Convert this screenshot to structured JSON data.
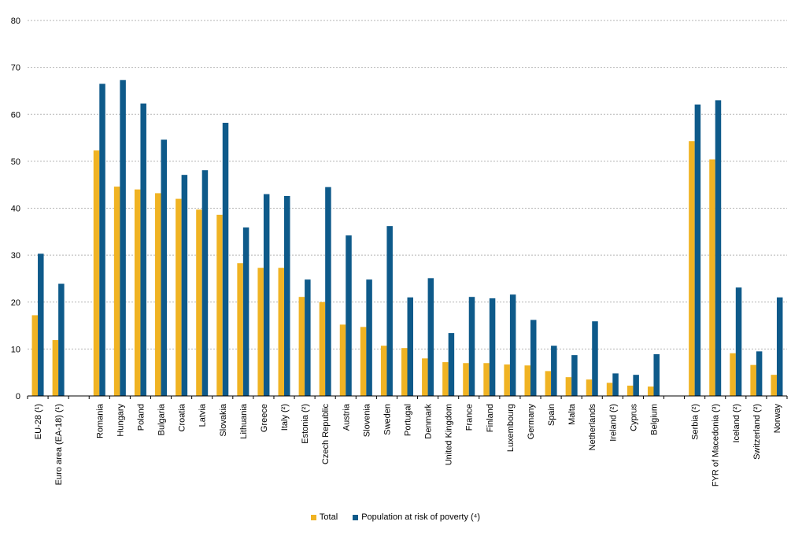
{
  "chart_data": {
    "type": "bar",
    "title": "",
    "xlabel": "",
    "ylabel": "",
    "ylim": [
      0,
      80
    ],
    "yticks": [
      0,
      10,
      20,
      30,
      40,
      50,
      60,
      70,
      80
    ],
    "grid": true,
    "legend_position": "bottom",
    "groups": [
      [
        "EU-28 (¹)",
        "Euro area (EA-18) (¹)"
      ],
      [
        "Romania",
        "Hungary",
        "Poland",
        "Bulgaria",
        "Croatia",
        "Latvia",
        "Slovakia",
        "Lithuania",
        "Greece",
        "Italy (²)",
        "Estonia (²)",
        "Czech Republic",
        "Austria",
        "Slovenia",
        "Sweden",
        "Portugal",
        "Denmark",
        "United Kingdom",
        "France",
        "Finland",
        "Luxembourg",
        "Germany",
        "Spain",
        "Malta",
        "Netherlands",
        "Ireland (²)",
        "Cyprus",
        "Belgium"
      ],
      [
        "Serbia (²)",
        "FYR of Macedonia (³)",
        "Iceland (²)",
        "Switzerland (²)",
        "Norway"
      ]
    ],
    "series": [
      {
        "name": "Total",
        "color": "#F0B323",
        "values": [
          17.2,
          11.9,
          52.3,
          44.6,
          44.0,
          43.2,
          42.0,
          39.7,
          38.6,
          28.3,
          27.3,
          27.3,
          21.1,
          20.0,
          15.2,
          14.7,
          10.7,
          10.2,
          8.0,
          7.2,
          7.0,
          7.0,
          6.7,
          6.5,
          5.3,
          4.0,
          3.5,
          2.8,
          2.2,
          2.0,
          54.3,
          50.4,
          9.1,
          6.6,
          4.5
        ]
      },
      {
        "name": "Population at risk of poverty (⁴)",
        "color": "#0E5A8A",
        "values": [
          30.3,
          23.9,
          66.5,
          67.3,
          62.3,
          54.6,
          47.1,
          48.1,
          58.2,
          35.9,
          43.0,
          42.6,
          24.8,
          44.5,
          34.2,
          24.8,
          36.2,
          21.0,
          25.1,
          13.4,
          21.1,
          20.8,
          21.6,
          16.2,
          10.7,
          8.7,
          15.9,
          4.8,
          4.5,
          8.9,
          62.1,
          63.0,
          23.1,
          9.5,
          21.0
        ]
      }
    ]
  }
}
